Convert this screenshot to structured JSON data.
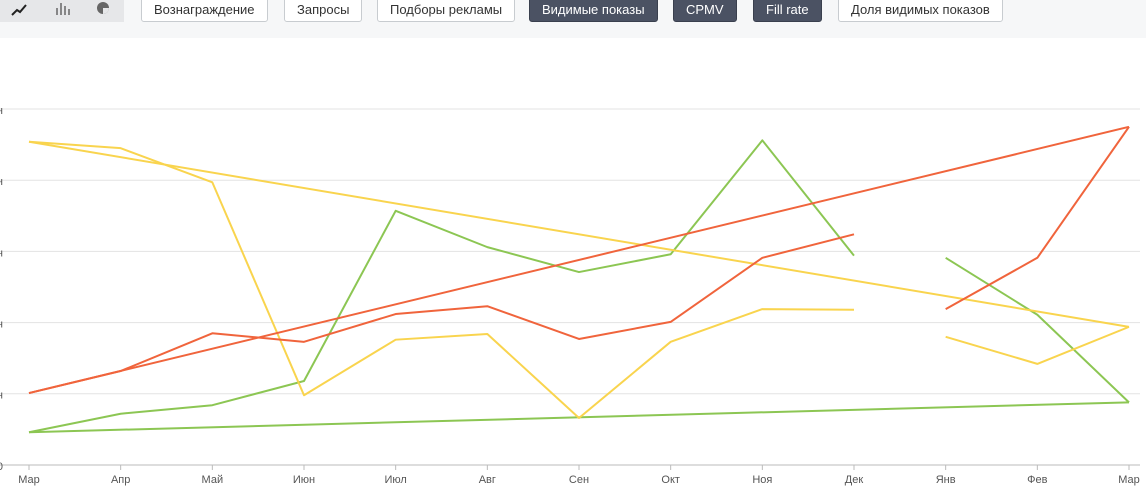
{
  "toolbar": {
    "buttons": [
      {
        "label": "Вознаграждение",
        "active": false
      },
      {
        "label": "Запросы",
        "active": false
      },
      {
        "label": "Подборы рекламы",
        "active": false
      },
      {
        "label": "Видимые показы",
        "active": true
      },
      {
        "label": "CPMV",
        "active": true
      },
      {
        "label": "Fill rate",
        "active": true
      },
      {
        "label": "Доля видимых показов",
        "active": false
      }
    ]
  },
  "chart_data": {
    "type": "line",
    "categories": [
      "Мар",
      "Апр",
      "Май",
      "Июн",
      "Июл",
      "Авг",
      "Сен",
      "Окт",
      "Ноя",
      "Дек",
      "Янв",
      "Фев",
      "Мар"
    ],
    "ylim": [
      0,
      5
    ],
    "yticks": [
      {
        "value": 0,
        "label": "0"
      },
      {
        "value": 1,
        "label": "н"
      },
      {
        "value": 2,
        "label": "н"
      },
      {
        "value": 3,
        "label": "н"
      },
      {
        "value": 4,
        "label": "н"
      },
      {
        "value": 5,
        "label": "н"
      }
    ],
    "grid": true,
    "series": [
      {
        "color": "#8cc653",
        "values": [
          0.46,
          0.72,
          0.84,
          1.18,
          3.57,
          3.06,
          2.71,
          2.96,
          4.56,
          2.94,
          null,
          null,
          null
        ]
      },
      {
        "color": "#8cc653",
        "values": [
          null,
          null,
          null,
          null,
          null,
          null,
          null,
          null,
          null,
          null,
          2.91,
          2.11,
          0.88
        ]
      },
      {
        "color": "#8cc653",
        "values": [
          0.46,
          null,
          null,
          null,
          null,
          null,
          null,
          null,
          null,
          null,
          null,
          null,
          0.88
        ],
        "trend": true
      },
      {
        "color": "#f9d44e",
        "values": [
          4.54,
          4.45,
          3.97,
          0.98,
          1.76,
          1.84,
          0.66,
          1.73,
          2.19,
          2.18,
          null,
          null,
          null
        ]
      },
      {
        "color": "#f9d44e",
        "values": [
          null,
          null,
          null,
          null,
          null,
          null,
          null,
          null,
          null,
          null,
          1.8,
          1.42,
          1.94
        ]
      },
      {
        "color": "#f9d44e",
        "values": [
          4.54,
          null,
          null,
          null,
          null,
          null,
          null,
          null,
          null,
          null,
          null,
          null,
          1.94
        ],
        "trend": true
      },
      {
        "color": "#f0643c",
        "values": [
          1.01,
          1.32,
          1.85,
          1.73,
          2.12,
          2.23,
          1.77,
          2.01,
          2.91,
          3.24,
          null,
          null,
          null
        ]
      },
      {
        "color": "#f0643c",
        "values": [
          null,
          null,
          null,
          null,
          null,
          null,
          null,
          null,
          null,
          null,
          2.19,
          2.91,
          4.75
        ]
      },
      {
        "color": "#f0643c",
        "values": [
          1.01,
          null,
          null,
          null,
          null,
          null,
          null,
          null,
          null,
          null,
          null,
          null,
          4.75
        ],
        "trend": true
      }
    ]
  }
}
